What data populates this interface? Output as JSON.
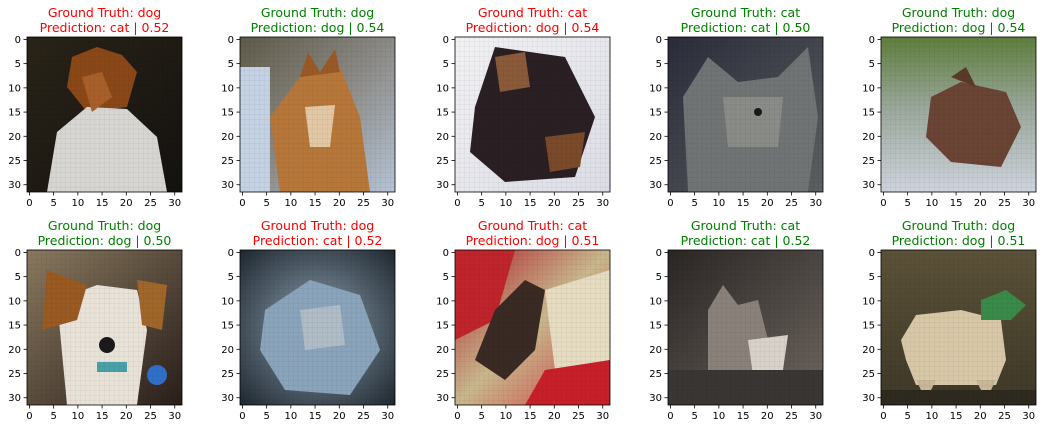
{
  "colors": {
    "correct": "#008000",
    "wrong": "#ff0000",
    "axis": "#000000"
  },
  "axis_ticks": [
    "0",
    "5",
    "10",
    "15",
    "20",
    "25",
    "30"
  ],
  "panels": [
    {
      "ground_truth": "Ground Truth: dog",
      "prediction": "Prediction: cat | 0.52",
      "status": "wrong",
      "image_subject": "brown-white dog in dark room"
    },
    {
      "ground_truth": "Ground Truth: dog",
      "prediction": "Prediction: dog | 0.54",
      "status": "correct",
      "image_subject": "shiba dog lying on blanket"
    },
    {
      "ground_truth": "Ground Truth: cat",
      "prediction": "Prediction: dog | 0.54",
      "status": "wrong",
      "image_subject": "tortoiseshell cat on white"
    },
    {
      "ground_truth": "Ground Truth: cat",
      "prediction": "Prediction: cat | 0.50",
      "status": "correct",
      "image_subject": "grey cat face"
    },
    {
      "ground_truth": "Ground Truth: dog",
      "prediction": "Prediction: dog | 0.54",
      "status": "correct",
      "image_subject": "brown dog on grass"
    },
    {
      "ground_truth": "Ground Truth: dog",
      "prediction": "Prediction: dog | 0.50",
      "status": "correct",
      "image_subject": "puppy held by person"
    },
    {
      "ground_truth": "Ground Truth: dog",
      "prediction": "Prediction: cat | 0.52",
      "status": "wrong",
      "image_subject": "fluffy blue-grey dog"
    },
    {
      "ground_truth": "Ground Truth: cat",
      "prediction": "Prediction: dog | 0.51",
      "status": "wrong",
      "image_subject": "cat on red and cream blanket"
    },
    {
      "ground_truth": "Ground Truth: cat",
      "prediction": "Prediction: cat | 0.52",
      "status": "correct",
      "image_subject": "cat sitting in dark"
    },
    {
      "ground_truth": "Ground Truth: dog",
      "prediction": "Prediction: dog | 0.51",
      "status": "correct",
      "image_subject": "light dog with green hat"
    }
  ]
}
